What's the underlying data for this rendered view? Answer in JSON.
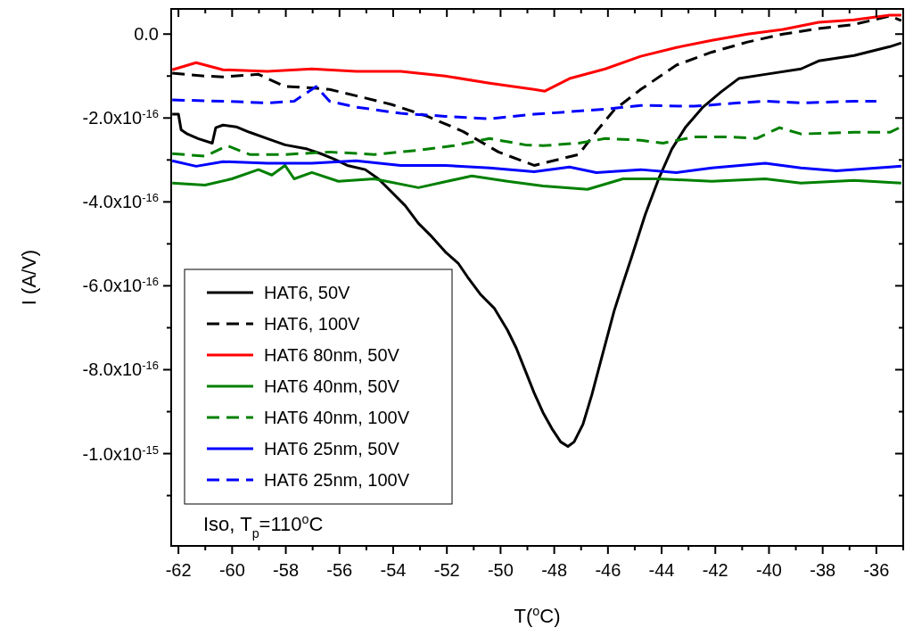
{
  "chart_data": {
    "type": "line",
    "xlabel": "T($^{o}$C)",
    "ylabel": "I (A/V)",
    "annotations": [
      "Iso, T$_{p}$=110$^{o}$C"
    ],
    "xlim": [
      -62.27,
      -35.0
    ],
    "ylim": [
      -1.22e-15,
      6e-17
    ],
    "xticks": [
      -62,
      {
        "value": -61,
        "label": null
      },
      -60,
      {
        "value": -59,
        "label": null
      },
      -58,
      {
        "value": -57,
        "label": null
      },
      -56,
      {
        "value": -55,
        "label": null
      },
      -54,
      {
        "value": -53,
        "label": null
      },
      -52,
      {
        "value": -51,
        "label": null
      },
      -50,
      {
        "value": -49,
        "label": null
      },
      -48,
      {
        "value": -47,
        "label": null
      },
      -46,
      {
        "value": -45,
        "label": null
      },
      -44,
      {
        "value": -43,
        "label": null
      },
      -42,
      {
        "value": -41,
        "label": null
      },
      -40,
      {
        "value": -39,
        "label": null
      },
      -38,
      {
        "value": -37,
        "label": null
      },
      -36,
      {
        "value": -35,
        "label": null
      }
    ],
    "yticks": [
      {
        "value": 0,
        "label": "0.0"
      },
      {
        "value": -1e-16,
        "label": null
      },
      {
        "value": -2e-16,
        "label": "-2.0x10$^{-16}$"
      },
      {
        "value": -3e-16,
        "label": null
      },
      {
        "value": -4e-16,
        "label": "-4.0x10$^{-16}$"
      },
      {
        "value": -5e-16,
        "label": null
      },
      {
        "value": -6e-16,
        "label": "-6.0x10$^{-16}$"
      },
      {
        "value": -7e-16,
        "label": null
      },
      {
        "value": -8e-16,
        "label": "-8.0x10$^{-16}$"
      },
      {
        "value": -9e-16,
        "label": null
      },
      {
        "value": -1e-15,
        "label": "-1.0x10$^{-15}$"
      },
      {
        "value": -1.1e-15,
        "label": null
      }
    ],
    "grid": false,
    "legend": "bottom left",
    "series": [
      {
        "name": "HAT6, 50V",
        "color": "#000000",
        "line_style": "solid",
        "x": [
          -62.23,
          -62.0,
          -61.9,
          -61.67,
          -61.27,
          -60.74,
          -60.61,
          -60.34,
          -59.85,
          -59.35,
          -58.69,
          -58.03,
          -57.2,
          -56.7,
          -56.2,
          -55.71,
          -55.04,
          -54.55,
          -54.05,
          -53.55,
          -53.06,
          -52.56,
          -52.06,
          -51.57,
          -51.23,
          -50.74,
          -50.24,
          -49.74,
          -49.41,
          -49.08,
          -48.75,
          -48.42,
          -48.09,
          -47.76,
          -47.49,
          -47.26,
          -46.93,
          -46.6,
          -46.27,
          -45.77,
          -45.44,
          -45.11,
          -44.61,
          -44.11,
          -43.62,
          -43.12,
          -42.46,
          -41.79,
          -41.13,
          -40.14,
          -38.81,
          -38.15,
          -36.83,
          -35.5,
          -35.07
        ],
        "values": [
          -1.91e-16,
          -1.91e-16,
          -2.28e-16,
          -2.38e-16,
          -2.49e-16,
          -2.6e-16,
          -2.23e-16,
          -2.17e-16,
          -2.21e-16,
          -2.34e-16,
          -2.49e-16,
          -2.64e-16,
          -2.74e-16,
          -2.85e-16,
          -2.98e-16,
          -3.13e-16,
          -3.23e-16,
          -3.45e-16,
          -3.77e-16,
          -4.09e-16,
          -4.51e-16,
          -4.83e-16,
          -5.19e-16,
          -5.47e-16,
          -5.79e-16,
          -6.21e-16,
          -6.53e-16,
          -7.06e-16,
          -7.49e-16,
          -8.02e-16,
          -8.55e-16,
          -9.02e-16,
          -9.4e-16,
          -9.72e-16,
          -9.83e-16,
          -9.72e-16,
          -9.3e-16,
          -8.6e-16,
          -7.8e-16,
          -6.6e-16,
          -5.94e-16,
          -5.3e-16,
          -4.3e-16,
          -3.45e-16,
          -2.74e-16,
          -2.23e-16,
          -1.74e-16,
          -1.38e-16,
          -1.06e-16,
          -9.6e-17,
          -8.3e-17,
          -6.4e-17,
          -5.1e-17,
          -3e-17,
          -2.1e-17
        ]
      },
      {
        "name": "HAT6, 100V",
        "color": "#000000",
        "line_style": "dashed",
        "x": [
          -62.23,
          -61.01,
          -60.34,
          -59.02,
          -58.03,
          -57.03,
          -56.37,
          -55.38,
          -54.05,
          -52.73,
          -51.4,
          -50.08,
          -48.75,
          -47.09,
          -46.43,
          -45.77,
          -44.78,
          -43.45,
          -42.13,
          -40.8,
          -39.48,
          -38.15,
          -36.83,
          -35.5,
          -35.07
        ],
        "values": [
          -9.3e-17,
          -1e-16,
          -1.02e-16,
          -9.6e-17,
          -1.25e-16,
          -1.28e-16,
          -1.32e-16,
          -1.47e-16,
          -1.68e-16,
          -1.96e-16,
          -2.32e-16,
          -2.81e-16,
          -3.13e-16,
          -2.87e-16,
          -2.32e-16,
          -1.81e-16,
          -1.32e-16,
          -7.4e-17,
          -4.3e-17,
          -1.9e-17,
          0,
          1.3e-17,
          2.3e-17,
          4.3e-17,
          3.2e-17
        ]
      },
      {
        "name": "HAT6 80nm, 50V",
        "color": "#ff0000",
        "line_style": "solid",
        "x": [
          -62.23,
          -61.34,
          -60.34,
          -58.69,
          -57.03,
          -55.38,
          -53.72,
          -52.06,
          -50.41,
          -48.75,
          -48.35,
          -47.43,
          -46.1,
          -44.78,
          -43.45,
          -42.13,
          -40.8,
          -39.48,
          -38.15,
          -36.83,
          -35.5,
          -35.07
        ],
        "values": [
          -8.5e-17,
          -6.8e-17,
          -8.5e-17,
          -8.9e-17,
          -8.3e-17,
          -8.9e-17,
          -8.9e-17,
          -1e-16,
          -1.17e-16,
          -1.32e-16,
          -1.36e-16,
          -1.06e-16,
          -8.3e-17,
          -5.3e-17,
          -3.2e-17,
          -1.5e-17,
          0,
          1.1e-17,
          2.8e-17,
          3.4e-17,
          4.5e-17,
          4.5e-17
        ]
      },
      {
        "name": "HAT6 40nm, 50V",
        "color": "#008000",
        "line_style": "solid",
        "x": [
          -62.23,
          -61.01,
          -60.01,
          -59.02,
          -58.52,
          -58.03,
          -57.69,
          -57.03,
          -56.04,
          -54.71,
          -53.06,
          -51.07,
          -49.74,
          -48.42,
          -46.76,
          -45.44,
          -44.11,
          -42.13,
          -40.14,
          -38.81,
          -36.83,
          -35.07
        ],
        "values": [
          -3.55e-16,
          -3.6e-16,
          -3.45e-16,
          -3.23e-16,
          -3.36e-16,
          -3.13e-16,
          -3.45e-16,
          -3.3e-16,
          -3.51e-16,
          -3.45e-16,
          -3.66e-16,
          -3.38e-16,
          -3.51e-16,
          -3.62e-16,
          -3.7e-16,
          -3.45e-16,
          -3.45e-16,
          -3.51e-16,
          -3.45e-16,
          -3.55e-16,
          -3.49e-16,
          -3.55e-16
        ]
      },
      {
        "name": "HAT6 40nm, 100V",
        "color": "#008000",
        "line_style": "dashed",
        "x": [
          -62.23,
          -61.01,
          -60.18,
          -59.35,
          -58.03,
          -56.37,
          -54.71,
          -53.06,
          -51.74,
          -50.41,
          -49.08,
          -48.42,
          -47.09,
          -46.1,
          -44.78,
          -43.95,
          -42.79,
          -41.46,
          -40.47,
          -39.61,
          -38.81,
          -36.83,
          -35.5,
          -35.07
        ],
        "values": [
          -2.85e-16,
          -2.91e-16,
          -2.66e-16,
          -2.87e-16,
          -2.87e-16,
          -2.81e-16,
          -2.87e-16,
          -2.77e-16,
          -2.66e-16,
          -2.49e-16,
          -2.64e-16,
          -2.66e-16,
          -2.6e-16,
          -2.49e-16,
          -2.53e-16,
          -2.6e-16,
          -2.45e-16,
          -2.45e-16,
          -2.49e-16,
          -2.23e-16,
          -2.38e-16,
          -2.34e-16,
          -2.34e-16,
          -2.21e-16
        ]
      },
      {
        "name": "HAT6 25nm, 50V",
        "color": "#0000ff",
        "line_style": "solid",
        "x": [
          -62.23,
          -61.34,
          -60.34,
          -58.69,
          -57.03,
          -55.38,
          -53.72,
          -52.06,
          -50.41,
          -48.75,
          -47.43,
          -46.43,
          -44.78,
          -43.45,
          -42.13,
          -40.14,
          -38.81,
          -37.49,
          -35.5,
          -35.07
        ],
        "values": [
          -3.02e-16,
          -3.15e-16,
          -3.04e-16,
          -3.08e-16,
          -3.08e-16,
          -3.02e-16,
          -3.13e-16,
          -3.13e-16,
          -3.19e-16,
          -3.28e-16,
          -3.17e-16,
          -3.3e-16,
          -3.23e-16,
          -3.3e-16,
          -3.19e-16,
          -3.08e-16,
          -3.19e-16,
          -3.26e-16,
          -3.17e-16,
          -3.15e-16
        ]
      },
      {
        "name": "HAT6 25nm, 100V",
        "color": "#0000ff",
        "line_style": "dashed",
        "x": [
          -62.23,
          -60.34,
          -58.69,
          -57.69,
          -56.87,
          -56.37,
          -55.38,
          -53.72,
          -52.06,
          -50.41,
          -48.75,
          -47.43,
          -46.1,
          -44.78,
          -42.79,
          -41.13,
          -40.14,
          -38.81,
          -36.83,
          -36.0
        ],
        "values": [
          -1.57e-16,
          -1.6e-16,
          -1.64e-16,
          -1.6e-16,
          -1.25e-16,
          -1.6e-16,
          -1.74e-16,
          -1.89e-16,
          -1.96e-16,
          -2.02e-16,
          -1.91e-16,
          -1.85e-16,
          -1.79e-16,
          -1.7e-16,
          -1.72e-16,
          -1.64e-16,
          -1.6e-16,
          -1.64e-16,
          -1.6e-16,
          -1.6e-16
        ]
      }
    ]
  }
}
